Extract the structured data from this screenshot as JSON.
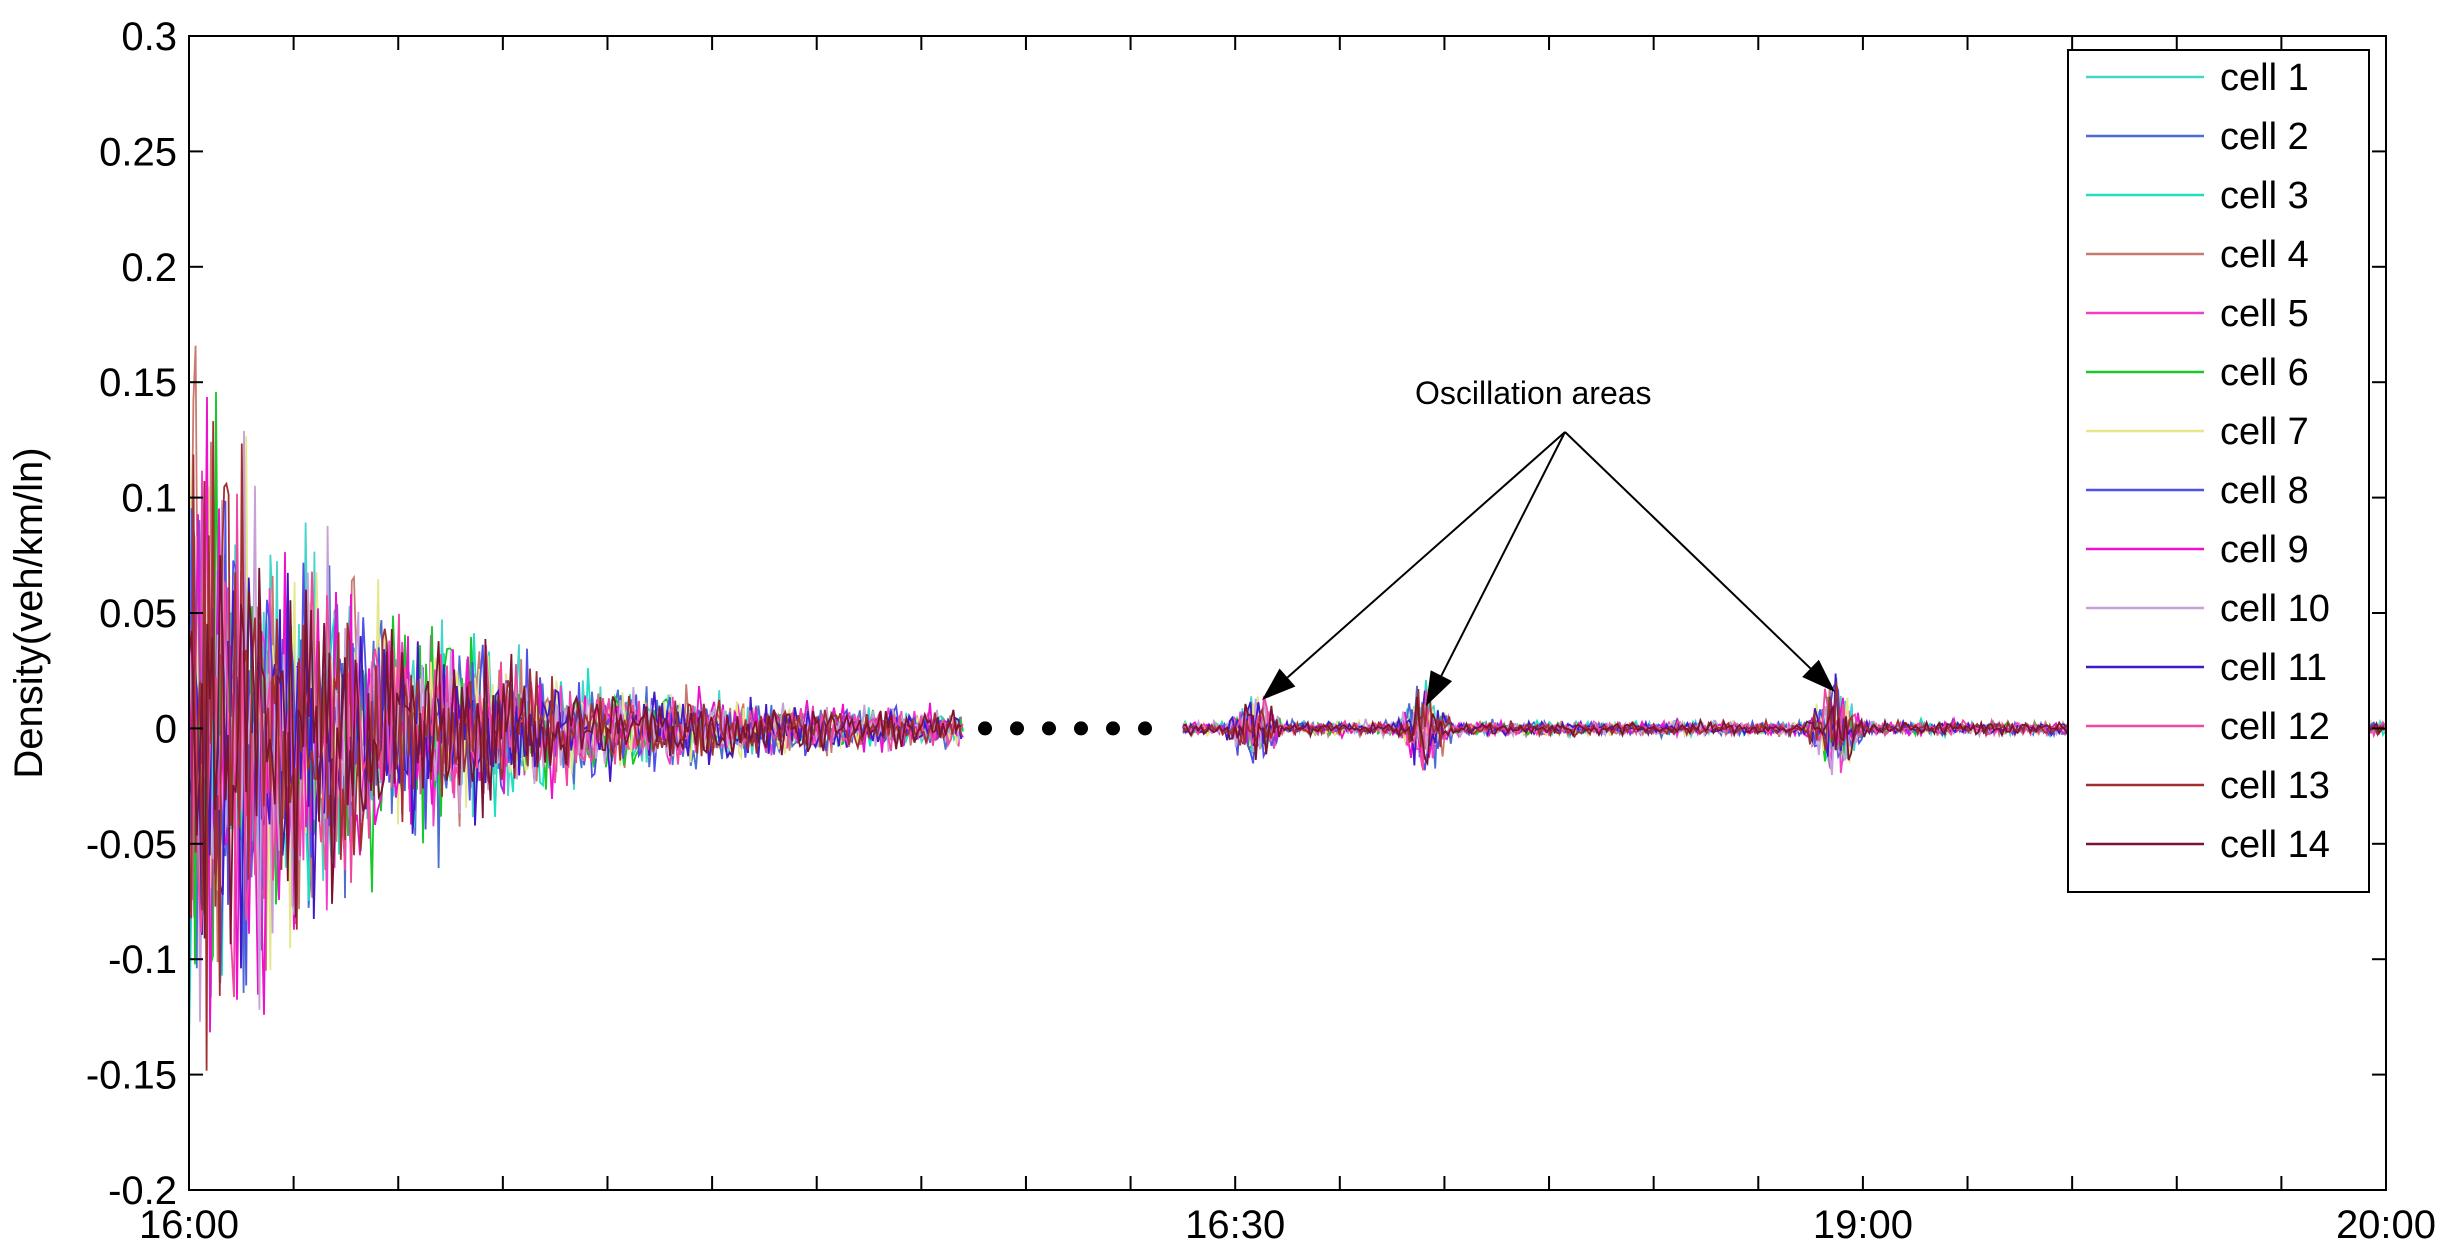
{
  "chart_data": {
    "type": "line",
    "title": "",
    "xlabel": "",
    "ylabel": "Density(veh/km/ln)",
    "ylim": [
      -0.2,
      0.3
    ],
    "yticks": [
      "0.3",
      "0.25",
      "0.2",
      "0.15",
      "0.1",
      "0.05",
      "0",
      "-0.05",
      "-0.1",
      "-0.15",
      "-0.2"
    ],
    "xticks": [
      "16:00",
      "16:30",
      "19:00",
      "20:00"
    ],
    "legend_position": "top-right",
    "gap_marker": "......",
    "annotation": "Oscillation areas",
    "grid": false,
    "segments": [
      {
        "from": "16:00",
        "to": "16:30 (abridged)",
        "note": "large oscillation decaying to near zero"
      },
      {
        "from": "16:30",
        "to": "20:00",
        "note": "near zero with local oscillation areas"
      }
    ],
    "series": [
      {
        "name": "cell 1",
        "color": "#44d6c8"
      },
      {
        "name": "cell 2",
        "color": "#4a6fd0"
      },
      {
        "name": "cell 3",
        "color": "#1ee0c0"
      },
      {
        "name": "cell 4",
        "color": "#c87a70"
      },
      {
        "name": "cell 5",
        "color": "#f040c8"
      },
      {
        "name": "cell 6",
        "color": "#18c828"
      },
      {
        "name": "cell 7",
        "color": "#e6e68a"
      },
      {
        "name": "cell 8",
        "color": "#5050e8"
      },
      {
        "name": "cell 9",
        "color": "#ee10cc"
      },
      {
        "name": "cell 10",
        "color": "#c8a0d8"
      },
      {
        "name": "cell 11",
        "color": "#4018c8"
      },
      {
        "name": "cell 12",
        "color": "#f048a0"
      },
      {
        "name": "cell 13",
        "color": "#a03030"
      },
      {
        "name": "cell 14",
        "color": "#7a1430"
      }
    ]
  }
}
